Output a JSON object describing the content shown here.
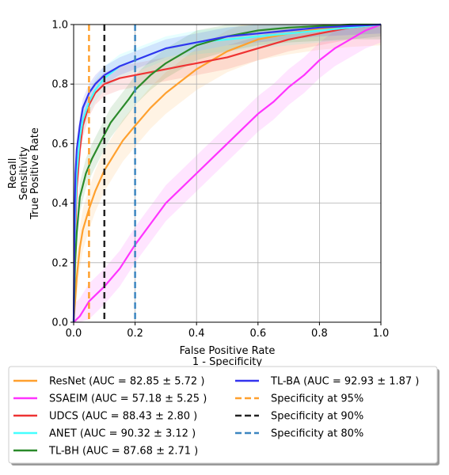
{
  "chart_data": {
    "type": "line",
    "xlabel_lines": [
      "False Positive Rate",
      "1 - Specificity"
    ],
    "ylabel_lines": [
      "Recall",
      "Sensitivity",
      "True Positive Rate"
    ],
    "xlim": [
      0.0,
      1.0
    ],
    "ylim": [
      0.0,
      1.0
    ],
    "xticks": [
      "0.0",
      "0.2",
      "0.4",
      "0.6",
      "0.8",
      "1.0"
    ],
    "yticks": [
      "0.0",
      "0.2",
      "0.4",
      "0.6",
      "0.8",
      "1.0"
    ],
    "grid": true,
    "legend_placement": "below",
    "series": [
      {
        "name": "ResNet (AUC = 82.85 ± 5.72 )",
        "color": "#ffa02e",
        "x": [
          0,
          0.01,
          0.02,
          0.03,
          0.05,
          0.07,
          0.1,
          0.13,
          0.16,
          0.2,
          0.25,
          0.3,
          0.35,
          0.4,
          0.45,
          0.5,
          0.55,
          0.6,
          0.7,
          0.8,
          0.9,
          1.0
        ],
        "y": [
          0,
          0.15,
          0.25,
          0.31,
          0.38,
          0.44,
          0.51,
          0.56,
          0.61,
          0.66,
          0.72,
          0.77,
          0.81,
          0.85,
          0.88,
          0.91,
          0.93,
          0.95,
          0.97,
          0.985,
          0.995,
          1.0
        ],
        "band": 0.07
      },
      {
        "name": "SSAEIM (AUC = 57.18 ± 5.25 )",
        "color": "#ff33ff",
        "x": [
          0,
          0.02,
          0.05,
          0.1,
          0.15,
          0.2,
          0.25,
          0.3,
          0.35,
          0.4,
          0.45,
          0.5,
          0.55,
          0.6,
          0.65,
          0.7,
          0.75,
          0.8,
          0.85,
          0.9,
          0.95,
          1.0
        ],
        "y": [
          0,
          0.02,
          0.07,
          0.12,
          0.18,
          0.26,
          0.33,
          0.4,
          0.45,
          0.5,
          0.55,
          0.6,
          0.65,
          0.7,
          0.74,
          0.79,
          0.83,
          0.88,
          0.92,
          0.95,
          0.98,
          1.0
        ],
        "band": 0.06
      },
      {
        "name": "UDCS (AUC = 88.43 ± 2.80 )",
        "color": "#ee3333",
        "x": [
          0,
          0.005,
          0.01,
          0.02,
          0.03,
          0.05,
          0.07,
          0.1,
          0.15,
          0.2,
          0.25,
          0.3,
          0.35,
          0.4,
          0.5,
          0.6,
          0.7,
          0.8,
          0.9,
          1.0
        ],
        "y": [
          0,
          0.3,
          0.45,
          0.58,
          0.66,
          0.73,
          0.77,
          0.8,
          0.82,
          0.83,
          0.84,
          0.85,
          0.86,
          0.87,
          0.89,
          0.92,
          0.95,
          0.97,
          0.99,
          1.0
        ],
        "band": 0.04
      },
      {
        "name": "ANET (AUC = 90.32 ± 3.12 )",
        "color": "#44ffff",
        "x": [
          0,
          0.005,
          0.01,
          0.02,
          0.03,
          0.05,
          0.07,
          0.1,
          0.15,
          0.2,
          0.25,
          0.3,
          0.4,
          0.5,
          0.6,
          0.7,
          0.8,
          0.9,
          1.0
        ],
        "y": [
          0,
          0.35,
          0.5,
          0.62,
          0.68,
          0.74,
          0.78,
          0.82,
          0.86,
          0.88,
          0.9,
          0.92,
          0.94,
          0.95,
          0.96,
          0.97,
          0.98,
          0.99,
          1.0
        ],
        "band": 0.04
      },
      {
        "name": "TL-BH (AUC = 87.68 ± 2.71 )",
        "color": "#2a8a2a",
        "x": [
          0,
          0.005,
          0.01,
          0.02,
          0.04,
          0.06,
          0.08,
          0.1,
          0.12,
          0.15,
          0.18,
          0.2,
          0.25,
          0.3,
          0.35,
          0.4,
          0.5,
          0.6,
          0.7,
          0.8,
          0.9,
          1.0
        ],
        "y": [
          0,
          0.2,
          0.3,
          0.42,
          0.5,
          0.55,
          0.59,
          0.63,
          0.67,
          0.71,
          0.75,
          0.78,
          0.83,
          0.87,
          0.9,
          0.93,
          0.96,
          0.98,
          0.99,
          0.995,
          1.0,
          1.0
        ],
        "band": 0.05
      },
      {
        "name": "TL-BA (AUC = 92.93 ± 1.87 )",
        "color": "#3333ee",
        "x": [
          0,
          0.003,
          0.006,
          0.01,
          0.02,
          0.03,
          0.05,
          0.07,
          0.1,
          0.15,
          0.2,
          0.25,
          0.3,
          0.4,
          0.5,
          0.6,
          0.7,
          0.8,
          0.9,
          1.0
        ],
        "y": [
          0,
          0.35,
          0.5,
          0.58,
          0.66,
          0.72,
          0.77,
          0.8,
          0.83,
          0.86,
          0.88,
          0.9,
          0.92,
          0.94,
          0.96,
          0.97,
          0.98,
          0.99,
          0.995,
          1.0
        ],
        "band": 0.03
      }
    ],
    "reference_lines": [
      {
        "name": "Specificity at 95%",
        "x": 0.05,
        "color": "#ffa02e"
      },
      {
        "name": "Specificity at 90%",
        "x": 0.1,
        "color": "#222222"
      },
      {
        "name": "Specificity at 80%",
        "x": 0.2,
        "color": "#3c86c0"
      }
    ]
  }
}
